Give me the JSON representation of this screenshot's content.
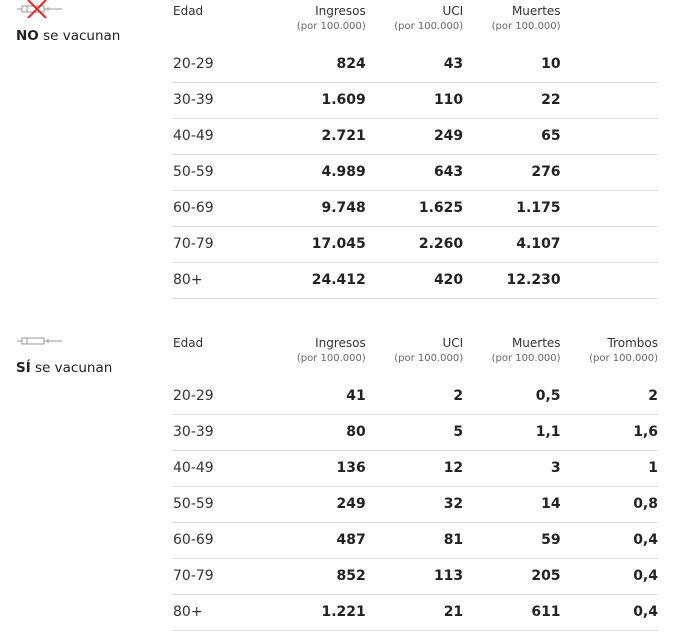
{
  "sections": [
    {
      "label_bold": "NO",
      "label_rest": " se vacunan",
      "icon": "syringe-crossed-icon",
      "headers": {
        "age": "Edad",
        "cols": [
          {
            "title": "Ingresos",
            "sub": "(por 100.000)"
          },
          {
            "title": "UCI",
            "sub": "(por 100.000)"
          },
          {
            "title": "Muertes",
            "sub": "(por 100.000)"
          }
        ]
      },
      "rows": [
        {
          "age": "20-29",
          "values": [
            "824",
            "43",
            "10"
          ]
        },
        {
          "age": "30-39",
          "values": [
            "1.609",
            "110",
            "22"
          ]
        },
        {
          "age": "40-49",
          "values": [
            "2.721",
            "249",
            "65"
          ]
        },
        {
          "age": "50-59",
          "values": [
            "4.989",
            "643",
            "276"
          ]
        },
        {
          "age": "60-69",
          "values": [
            "9.748",
            "1.625",
            "1.175"
          ]
        },
        {
          "age": "70-79",
          "values": [
            "17.045",
            "2.260",
            "4.107"
          ]
        },
        {
          "age": "80+",
          "values": [
            "24.412",
            "420",
            "12.230"
          ]
        }
      ]
    },
    {
      "label_bold": "SÍ",
      "label_rest": " se vacunan",
      "icon": "syringe-icon",
      "headers": {
        "age": "Edad",
        "cols": [
          {
            "title": "Ingresos",
            "sub": "(por 100.000)"
          },
          {
            "title": "UCI",
            "sub": "(por 100.000)"
          },
          {
            "title": "Muertes",
            "sub": "(por 100.000)"
          },
          {
            "title": "Trombos",
            "sub": "(por 100.000)"
          }
        ]
      },
      "rows": [
        {
          "age": "20-29",
          "values": [
            "41",
            "2",
            "0,5",
            "2"
          ]
        },
        {
          "age": "30-39",
          "values": [
            "80",
            "5",
            "1,1",
            "1,6"
          ]
        },
        {
          "age": "40-49",
          "values": [
            "136",
            "12",
            "3",
            "1"
          ]
        },
        {
          "age": "50-59",
          "values": [
            "249",
            "32",
            "14",
            "0,8"
          ]
        },
        {
          "age": "60-69",
          "values": [
            "487",
            "81",
            "59",
            "0,4"
          ]
        },
        {
          "age": "70-79",
          "values": [
            "852",
            "113",
            "205",
            "0,4"
          ]
        },
        {
          "age": "80+",
          "values": [
            "1.221",
            "21",
            "611",
            "0,4"
          ]
        }
      ]
    }
  ],
  "colors": {
    "cross": "#e32b2b",
    "syringe": "#9a9a9a",
    "rule": "#dcdcdc"
  }
}
